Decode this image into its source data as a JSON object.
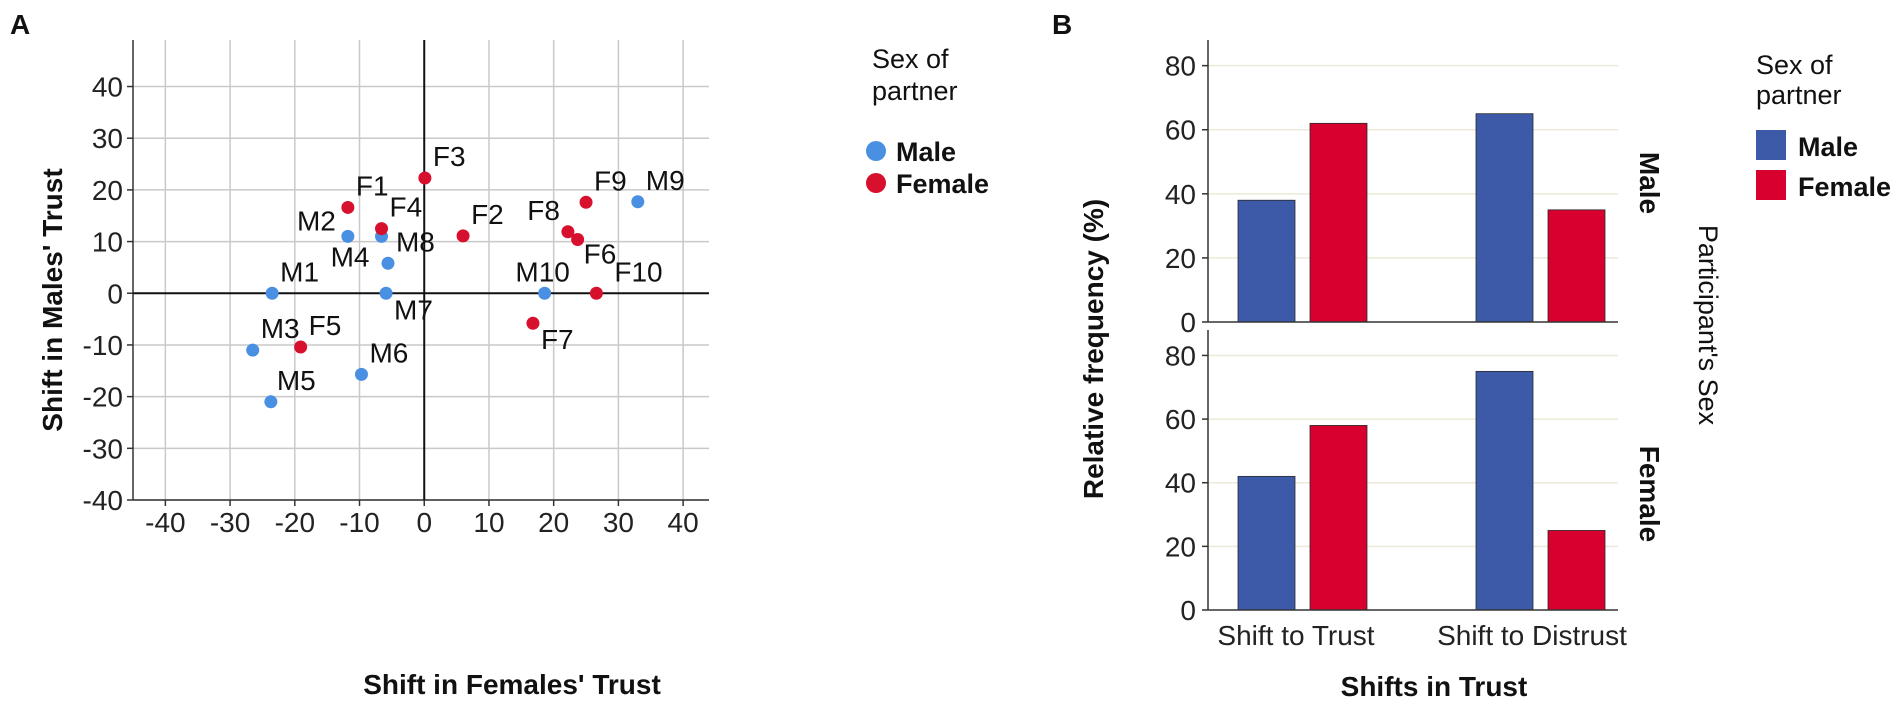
{
  "chart_data": [
    {
      "panel": "A",
      "type": "scatter",
      "xlabel": "Shift in Females' Trust",
      "ylabel": "Shift in Males' Trust",
      "xlim": [
        -45,
        44
      ],
      "ylim": [
        -40,
        49
      ],
      "xticks": [
        -40,
        -30,
        -20,
        -10,
        0,
        10,
        20,
        30,
        40
      ],
      "yticks": [
        -40,
        -30,
        -20,
        -10,
        0,
        10,
        20,
        30,
        40
      ],
      "grid": true,
      "legend": {
        "title": "Sex of partner",
        "title_lines": [
          "Sex of",
          "partner"
        ],
        "position": "right",
        "entries": [
          {
            "label": "Male",
            "color": "#4a90e2"
          },
          {
            "label": "Female",
            "color": "#d7102e"
          }
        ]
      },
      "series": [
        {
          "name": "Male",
          "color": "#4a90e2",
          "points": [
            {
              "label": "M1",
              "x": -23.5,
              "y": 0
            },
            {
              "label": "M2",
              "x": -11.8,
              "y": 11
            },
            {
              "label": "M3",
              "x": -26.5,
              "y": -11
            },
            {
              "label": "M4",
              "x": -6.6,
              "y": 11
            },
            {
              "label": "M5",
              "x": -23.7,
              "y": -21
            },
            {
              "label": "M6",
              "x": -9.7,
              "y": -15.7
            },
            {
              "label": "M7",
              "x": -5.9,
              "y": 0
            },
            {
              "label": "M8",
              "x": -5.6,
              "y": 5.8
            },
            {
              "label": "M9",
              "x": 33.0,
              "y": 17.7
            },
            {
              "label": "M10",
              "x": 18.6,
              "y": 0
            }
          ]
        },
        {
          "name": "Female",
          "color": "#d7102e",
          "points": [
            {
              "label": "F1",
              "x": -11.8,
              "y": 16.6
            },
            {
              "label": "F2",
              "x": 6.0,
              "y": 11.1
            },
            {
              "label": "F3",
              "x": 0.1,
              "y": 22.3
            },
            {
              "label": "F4",
              "x": -6.6,
              "y": 12.5
            },
            {
              "label": "F5",
              "x": -19.1,
              "y": -10.4
            },
            {
              "label": "F6",
              "x": 23.7,
              "y": 10.4
            },
            {
              "label": "F7",
              "x": 16.8,
              "y": -5.8
            },
            {
              "label": "F8",
              "x": 22.2,
              "y": 11.9
            },
            {
              "label": "F9",
              "x": 25.0,
              "y": 17.6
            },
            {
              "label": "F10",
              "x": 26.6,
              "y": 0
            }
          ]
        }
      ]
    },
    {
      "panel": "B",
      "type": "bar",
      "xlabel": "Shifts in Trust",
      "ylabel": "Relative frequency (%)",
      "facet_title": "Participant's Sex",
      "ylim": [
        0,
        88
      ],
      "yticks": [
        0,
        20,
        40,
        60,
        80
      ],
      "categories": [
        "Shift to Trust",
        "Shift to Distrust"
      ],
      "legend": {
        "title": "Sex of partner",
        "title_lines": [
          "Sex of",
          "partner"
        ],
        "position": "right",
        "entries": [
          {
            "label": "Male",
            "color": "#3c5aa8"
          },
          {
            "label": "Female",
            "color": "#d8002f"
          }
        ]
      },
      "facets": [
        {
          "label": "Male",
          "series": [
            {
              "name": "Male",
              "color": "#3c5aa8",
              "values": [
                38,
                65
              ]
            },
            {
              "name": "Female",
              "color": "#d8002f",
              "values": [
                62,
                35
              ]
            }
          ]
        },
        {
          "label": "Female",
          "series": [
            {
              "name": "Male",
              "color": "#3c5aa8",
              "values": [
                42,
                75
              ]
            },
            {
              "name": "Female",
              "color": "#d8002f",
              "values": [
                58,
                25
              ]
            }
          ]
        }
      ]
    }
  ]
}
